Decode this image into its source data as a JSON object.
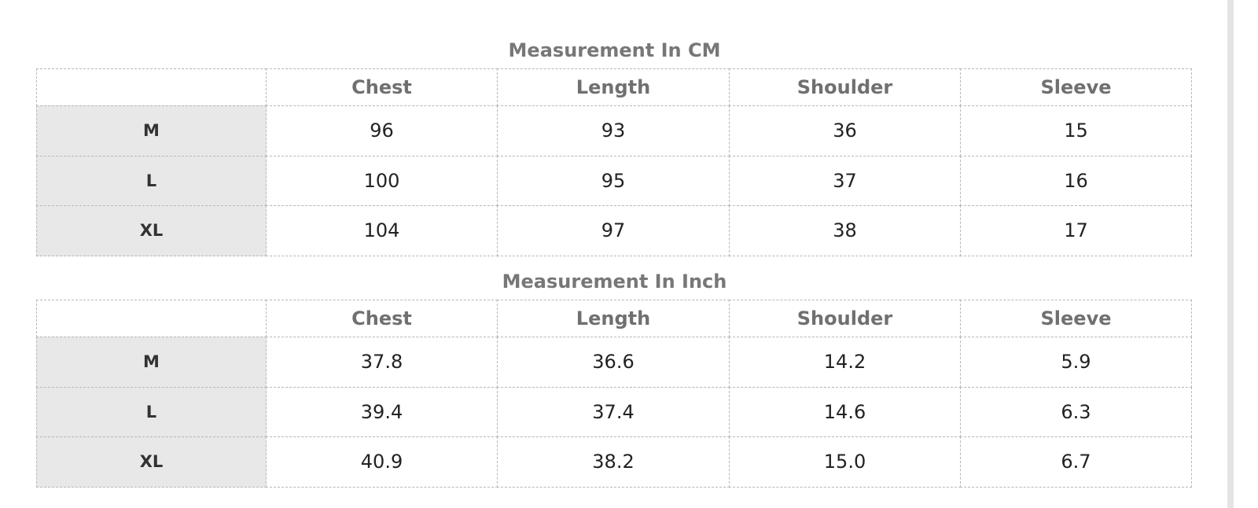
{
  "tables": [
    {
      "title": "Measurement In CM",
      "header": [
        "Chest",
        "Length",
        "Shoulder",
        "Sleeve"
      ],
      "rows": [
        [
          "M",
          "96",
          "93",
          "36",
          "15"
        ],
        [
          "L",
          "100",
          "95",
          "37",
          "16"
        ],
        [
          "XL",
          "104",
          "97",
          "38",
          "17"
        ]
      ]
    },
    {
      "title": "Measurement In Inch",
      "header": [
        "Chest",
        "Length",
        "Shoulder",
        "Sleeve"
      ],
      "rows": [
        [
          "M",
          "37.8",
          "36.6",
          "14.2",
          "5.9"
        ],
        [
          "L",
          "39.4",
          "37.4",
          "14.6",
          "6.3"
        ],
        [
          "XL",
          "40.9",
          "38.2",
          "15.0",
          "6.7"
        ]
      ]
    }
  ]
}
